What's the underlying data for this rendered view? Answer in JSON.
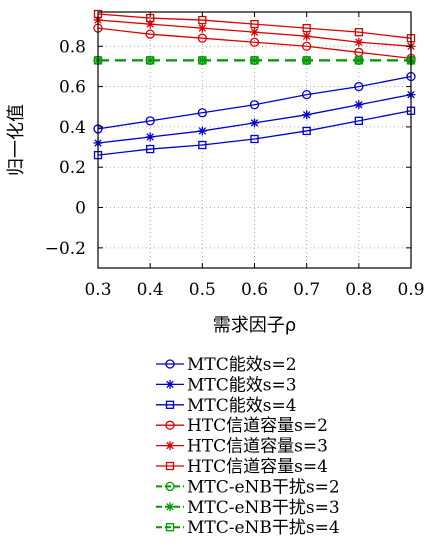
{
  "chart_data": {
    "type": "line",
    "xlabel": "需求因子ρ",
    "ylabel": "归一化值",
    "xlim": [
      0.3,
      0.9
    ],
    "ylim": [
      -0.3,
      0.97
    ],
    "xticks": [
      0.3,
      0.4,
      0.5,
      0.6,
      0.7,
      0.8,
      0.9
    ],
    "xtick_labels": [
      "0.3",
      "0.4",
      "0.5",
      "0.6",
      "0.7",
      "0.8",
      "0.9"
    ],
    "yticks": [
      -0.2,
      0,
      0.2,
      0.4,
      0.6,
      0.8
    ],
    "ytick_labels": [
      "−0.2",
      "0",
      "0.2",
      "0.4",
      "0.6",
      "0.8"
    ],
    "grid": true,
    "legend_position": "below",
    "x": [
      0.3,
      0.4,
      0.5,
      0.6,
      0.7,
      0.8,
      0.9
    ],
    "series": [
      {
        "name": "MTC能效s=2",
        "color": "#0000cc",
        "marker": "circle",
        "dash": "solid",
        "values": [
          0.39,
          0.43,
          0.47,
          0.51,
          0.56,
          0.6,
          0.65
        ]
      },
      {
        "name": "MTC能效s=3",
        "color": "#0000cc",
        "marker": "star",
        "dash": "solid",
        "values": [
          0.32,
          0.35,
          0.38,
          0.42,
          0.46,
          0.51,
          0.56
        ]
      },
      {
        "name": "MTC能效s=4",
        "color": "#0000cc",
        "marker": "square",
        "dash": "solid",
        "values": [
          0.26,
          0.29,
          0.31,
          0.34,
          0.38,
          0.43,
          0.48
        ]
      },
      {
        "name": "HTC信道容量s=2",
        "color": "#dd0000",
        "marker": "circle",
        "dash": "solid",
        "values": [
          0.89,
          0.86,
          0.84,
          0.82,
          0.8,
          0.77,
          0.74
        ]
      },
      {
        "name": "HTC信道容量s=3",
        "color": "#dd0000",
        "marker": "star",
        "dash": "solid",
        "values": [
          0.93,
          0.91,
          0.89,
          0.87,
          0.85,
          0.82,
          0.8
        ]
      },
      {
        "name": "HTC信道容量s=4",
        "color": "#dd0000",
        "marker": "square",
        "dash": "solid",
        "values": [
          0.96,
          0.94,
          0.93,
          0.91,
          0.89,
          0.87,
          0.84
        ]
      },
      {
        "name": "MTC-eNB干扰s=2",
        "color": "#009900",
        "marker": "circle",
        "dash": "dashed",
        "values": [
          0.73,
          0.73,
          0.73,
          0.73,
          0.73,
          0.73,
          0.73
        ]
      },
      {
        "name": "MTC-eNB干扰s=3",
        "color": "#009900",
        "marker": "star",
        "dash": "dashed",
        "values": [
          0.73,
          0.73,
          0.73,
          0.73,
          0.73,
          0.73,
          0.73
        ]
      },
      {
        "name": "MTC-eNB干扰s=4",
        "color": "#009900",
        "marker": "square",
        "dash": "dashed",
        "values": [
          0.73,
          0.73,
          0.73,
          0.73,
          0.73,
          0.73,
          0.73
        ]
      }
    ]
  }
}
